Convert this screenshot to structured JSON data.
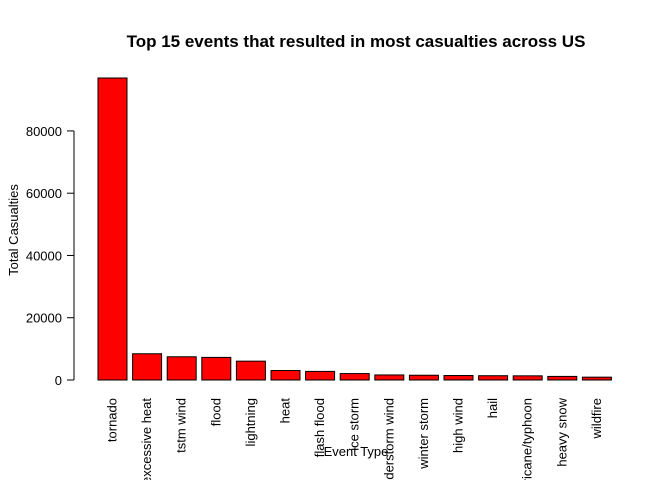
{
  "chart_data": {
    "type": "bar",
    "title": "Top 15 events that resulted in most casualties across US",
    "xlabel": "Event Type",
    "ylabel": "Total Casualties",
    "categories": [
      "tornado",
      "excessive heat",
      "tstm wind",
      "flood",
      "lightning",
      "heat",
      "flash flood",
      "ice storm",
      "thunderstorm wind",
      "winter storm",
      "high wind",
      "hail",
      "hurricane/typhoon",
      "heavy snow",
      "wildfire"
    ],
    "values": [
      97000,
      8430,
      7460,
      7260,
      6050,
      3040,
      2760,
      2060,
      1620,
      1530,
      1440,
      1380,
      1340,
      1150,
      910
    ],
    "yticks": [
      0,
      20000,
      40000,
      60000,
      80000
    ],
    "ylim": [
      0,
      97000
    ],
    "bar_color": "#ff0000",
    "bar_border_color": "#000000",
    "grid": false,
    "legend": "none"
  }
}
